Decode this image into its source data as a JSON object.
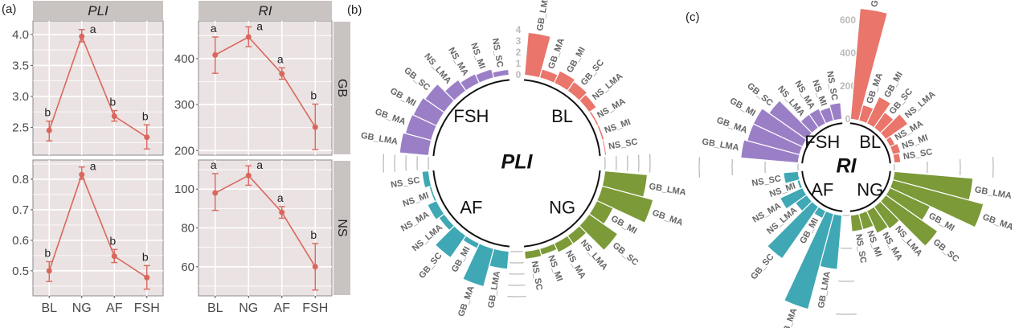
{
  "panel_labels": {
    "a": "(a)",
    "b": "(b)",
    "c": "(c)"
  },
  "colors": {
    "line": "#d9675c",
    "panel_bg": "#ebe3e3",
    "strip_bg": "#c9c3c1",
    "BL": "#e9756b",
    "NG": "#7c9a38",
    "AF": "#3fa8b4",
    "FSH": "#9b7fc6"
  },
  "chart_data": [
    {
      "panel": "(a)",
      "type": "line",
      "facet_cols": [
        "PLI",
        "RI"
      ],
      "facet_rows": [
        "GB",
        "NS"
      ],
      "categories": [
        "BL",
        "NG",
        "AF",
        "FSH"
      ],
      "grid": true,
      "panels": [
        {
          "col": "PLI",
          "row": "GB",
          "ylim": [
            2.05,
            4.22
          ],
          "yticks": [
            2.5,
            3.0,
            3.5,
            4.0
          ],
          "ytick_labels": [
            "2.5",
            "3.0",
            "3.5",
            "4.0"
          ],
          "values": [
            2.45,
            3.97,
            2.68,
            2.34
          ],
          "err_low": [
            2.28,
            3.88,
            2.6,
            2.15
          ],
          "err_high": [
            2.6,
            4.08,
            2.77,
            2.54
          ],
          "letters": [
            "b",
            "a",
            "b",
            "b"
          ]
        },
        {
          "col": "RI",
          "row": "GB",
          "ylim": [
            190,
            482
          ],
          "yticks": [
            200,
            300,
            400
          ],
          "ytick_labels": [
            "200",
            "300",
            "400"
          ],
          "values": [
            408,
            447,
            367,
            251
          ],
          "err_low": [
            368,
            426,
            355,
            202
          ],
          "err_high": [
            447,
            469,
            380,
            301
          ],
          "letters": [
            "a",
            "a",
            "a",
            "b"
          ]
        },
        {
          "col": "PLI",
          "row": "NS",
          "ylim": [
            0.418,
            0.863
          ],
          "yticks": [
            0.5,
            0.6,
            0.7,
            0.8
          ],
          "ytick_labels": [
            "0.5",
            "0.6",
            "0.7",
            "0.8"
          ],
          "values": [
            0.5,
            0.815,
            0.548,
            0.478
          ],
          "err_low": [
            0.465,
            0.8,
            0.527,
            0.44
          ],
          "err_high": [
            0.53,
            0.84,
            0.57,
            0.517
          ],
          "letters": [
            "b",
            "a",
            "b",
            "b"
          ]
        },
        {
          "col": "RI",
          "row": "NS",
          "ylim": [
            45,
            115
          ],
          "yticks": [
            60,
            80,
            100
          ],
          "ytick_labels": [
            "60",
            "80",
            "100"
          ],
          "values": [
            98,
            107,
            88,
            60
          ],
          "err_low": [
            89,
            102,
            85,
            48
          ],
          "err_high": [
            108,
            112,
            91,
            72
          ],
          "letters": [
            "a",
            "a",
            "a",
            "b"
          ]
        }
      ]
    },
    {
      "panel": "(b)",
      "type": "bar",
      "polar": true,
      "title": "PLI",
      "groups": [
        "BL",
        "NG",
        "AF",
        "FSH"
      ],
      "categories": [
        "GB_LMA",
        "GB_MA",
        "GB_MI",
        "GB_SC",
        "NS_LMA",
        "NS_MA",
        "NS_MI",
        "NS_SC"
      ],
      "radial_ticks": [
        0,
        1,
        2,
        3,
        4
      ],
      "radial_tick_labels": [
        "0",
        "1",
        "2",
        "3",
        "4"
      ],
      "series": [
        {
          "name": "BL",
          "values": [
            3.8,
            0.8,
            1.2,
            1.0,
            0.8,
            0.2,
            0.2,
            0.15
          ]
        },
        {
          "name": "NG",
          "values": [
            3.8,
            4.7,
            1.6,
            3.1,
            0.9,
            0.9,
            0.6,
            0.7
          ]
        },
        {
          "name": "AF",
          "values": [
            1.6,
            3.5,
            0.5,
            2.4,
            0.6,
            0.9,
            0.2,
            0.6
          ]
        },
        {
          "name": "FSH",
          "values": [
            2.6,
            2.4,
            2.3,
            2.1,
            1.2,
            0.9,
            0.8,
            0.5
          ]
        }
      ]
    },
    {
      "panel": "(c)",
      "type": "bar",
      "polar": true,
      "title": "RI",
      "groups": [
        "BL",
        "NG",
        "AF",
        "FSH"
      ],
      "categories": [
        "GB_LMA",
        "GB_MA",
        "GB_MI",
        "GB_SC",
        "NS_LMA",
        "NS_MA",
        "NS_MI",
        "NS_SC"
      ],
      "radial_ticks": [
        0,
        200,
        400,
        600
      ],
      "radial_tick_labels": [
        "0",
        "200",
        "400",
        "600"
      ],
      "series": [
        {
          "name": "BL",
          "values": [
            675,
            100,
            180,
            115,
            165,
            35,
            50,
            40
          ]
        },
        {
          "name": "NG",
          "values": [
            480,
            570,
            270,
            385,
            165,
            150,
            100,
            100
          ]
        },
        {
          "name": "AF",
          "values": [
            330,
            600,
            50,
            385,
            85,
            150,
            17,
            90
          ]
        },
        {
          "name": "FSH",
          "values": [
            350,
            330,
            330,
            280,
            100,
            100,
            85,
            100
          ]
        }
      ]
    }
  ]
}
